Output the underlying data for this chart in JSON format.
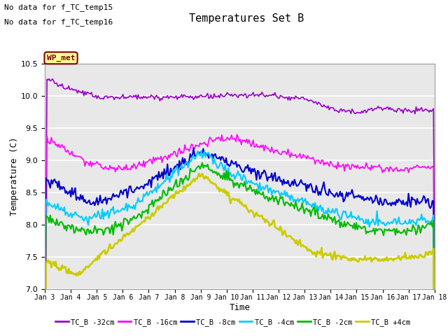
{
  "title": "Temperatures Set B",
  "xlabel": "Time",
  "ylabel": "Temperature (C)",
  "ylim": [
    7.0,
    10.5
  ],
  "text_no_data1": "No data for f_TC_temp15",
  "text_no_data2": "No data for f_TC_temp16",
  "wp_met_label": "WP_met",
  "xtick_labels": [
    "Jan 3",
    "Jan 4",
    "Jan 5",
    "Jan 6",
    "Jan 7",
    "Jan 8",
    "Jan 9",
    "Jan 10",
    "Jan 11",
    "Jan 12",
    "Jan 13",
    "Jan 14",
    "Jan 15",
    "Jan 16",
    "Jan 17",
    "Jan 18"
  ],
  "series_labels": [
    "TC_B -32cm",
    "TC_B -16cm",
    "TC_B -8cm",
    "TC_B -4cm",
    "TC_B -2cm",
    "TC_B +4cm"
  ],
  "series_colors": [
    "#9900cc",
    "#ff00ff",
    "#0000cc",
    "#00ccff",
    "#00bb00",
    "#cccc00"
  ],
  "plot_bg_color": "#e8e8e8",
  "grid_color": "#ffffff",
  "n_points": 360,
  "seed": 42,
  "figsize": [
    6.4,
    4.8
  ],
  "dpi": 100
}
